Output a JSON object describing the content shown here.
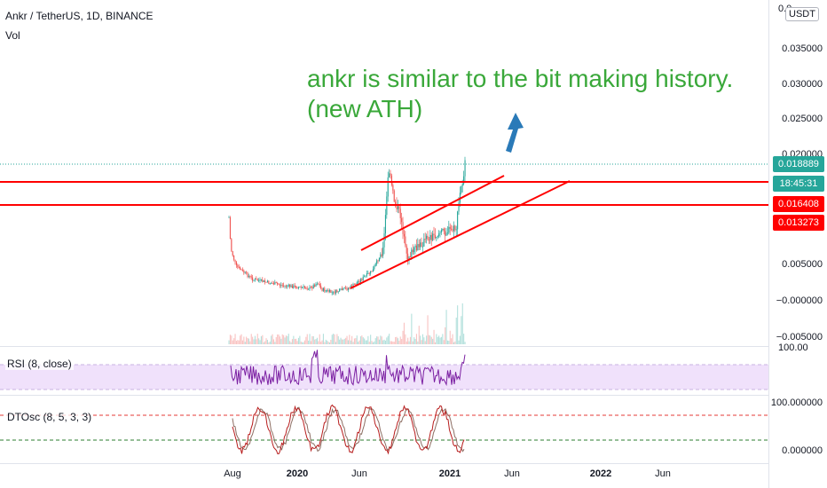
{
  "header": {
    "symbol_line": "Ankr / TetherUS, 1D, BINANCE",
    "volume_label": "Vol"
  },
  "annotation": {
    "line1": "ankr is similar to the bit making history.",
    "line2": "(new ATH)"
  },
  "price_axis": {
    "currency_button": "USDT",
    "top_label": "0.0",
    "labels": [
      "0.035000",
      "0.030000",
      "0.025000",
      "0.020000",
      "0.005000",
      "−0.000000",
      "−0.005000"
    ],
    "tags": [
      {
        "text": "0.018889",
        "color": "#26a69a"
      },
      {
        "text": "18:45:31",
        "color": "#26a69a"
      },
      {
        "text": "0.016408",
        "color": "#ff0000"
      },
      {
        "text": "0.013273",
        "color": "#ff0000"
      }
    ]
  },
  "rsi": {
    "label": "RSI (8, close)",
    "axis_label": "100.00"
  },
  "dtosc": {
    "label": "DTOsc (8, 5, 3, 3)",
    "axis_labels": [
      "100.000000",
      "0.000000"
    ]
  },
  "time_axis": {
    "labels": [
      {
        "text": "Aug",
        "bold": false
      },
      {
        "text": "2020",
        "bold": true
      },
      {
        "text": "Jun",
        "bold": false
      },
      {
        "text": "2021",
        "bold": true
      },
      {
        "text": "Jun",
        "bold": false
      },
      {
        "text": "2022",
        "bold": true
      },
      {
        "text": "Jun",
        "bold": false
      }
    ]
  },
  "colors": {
    "up": "#26a69a",
    "down": "#ef5350",
    "trendline": "#ff0000",
    "annotation": "#3aa83a",
    "arrow": "#2a7ab8",
    "rsi_line": "#7b1fa2",
    "rsi_band": "#f0e1fb",
    "dtosc_line": "#b71c1c"
  }
}
